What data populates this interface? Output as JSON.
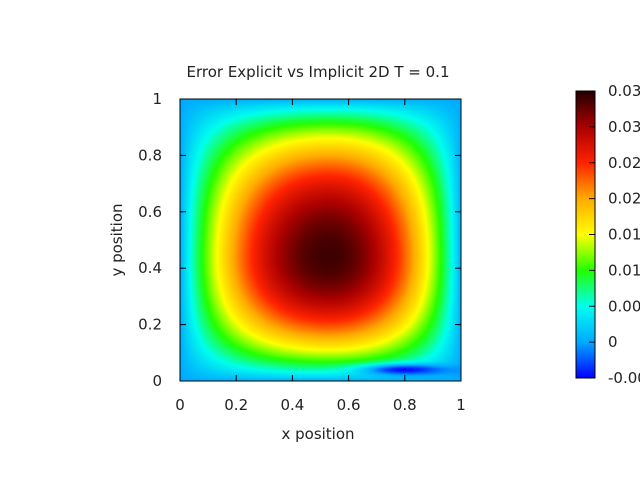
{
  "chart_data": {
    "type": "heatmap",
    "title": "Error Explicit vs Implicit 2D T = 0.1",
    "xlabel": "x position",
    "ylabel": "y position",
    "xlim": [
      0,
      1
    ],
    "ylim": [
      0,
      1
    ],
    "x_ticks": [
      "0",
      "0.2",
      "0.4",
      "0.6",
      "0.8",
      "1"
    ],
    "y_ticks": [
      "0",
      "0.2",
      "0.4",
      "0.6",
      "0.8",
      "1"
    ],
    "colorbar": {
      "range": [
        -0.005,
        0.035
      ],
      "tick_labels": [
        "-0.00",
        "0",
        "0.00",
        "0.01",
        "0.01",
        "0.02",
        "0.02",
        "0.03",
        "0.03"
      ],
      "palette": [
        "#0000ff",
        "#00aaff",
        "#00ffee",
        "#22ff00",
        "#ffff00",
        "#ffaa00",
        "#ff2200",
        "#aa0000",
        "#220000"
      ]
    },
    "field": {
      "description_of_values": "error peaks near center",
      "peak_value": 0.034,
      "peak_location": {
        "x": 0.53,
        "y": 0.44
      },
      "boundary_value": 0.0,
      "min_value": -0.005,
      "min_location": {
        "x": 0.8,
        "y": 0.04
      }
    }
  }
}
